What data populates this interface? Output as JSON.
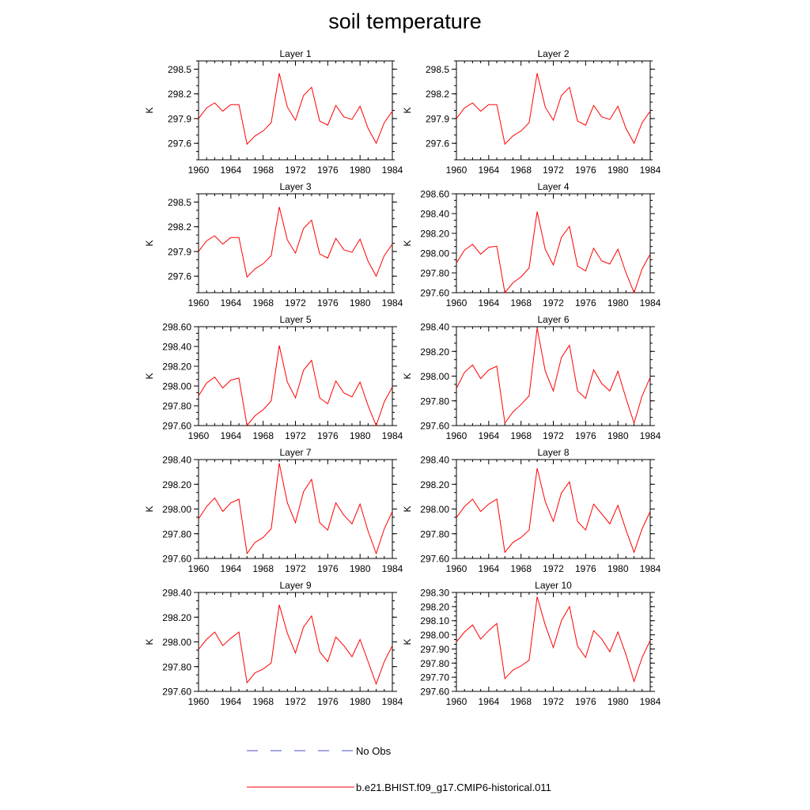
{
  "figure": {
    "title": "soil temperature",
    "line_color": "#ff0000",
    "legend_color_obs": "#4d4dcc"
  },
  "legend": {
    "no_obs_label": "No Obs",
    "model_label": "b.e21.BHIST.f09_g17.CMIP6-historical.011"
  },
  "chart_data": [
    {
      "type": "line",
      "title": "Layer 1",
      "ylabel": "K",
      "xlim": [
        1960,
        1984
      ],
      "ylim": [
        297.4,
        298.6
      ],
      "yticks": [
        297.6,
        297.9,
        298.2,
        298.5
      ],
      "ytick_labels": [
        "297.6",
        "297.9",
        "298.2",
        "298.5"
      ],
      "xticks": [
        1960,
        1964,
        1968,
        1972,
        1976,
        1980,
        1984
      ],
      "xtick_labels": [
        "1960",
        "1964",
        "1968",
        "1972",
        "1976",
        "1980",
        "1984"
      ],
      "series": [
        {
          "x": [
            1960,
            1961,
            1962,
            1963,
            1964,
            1965,
            1966,
            1967,
            1968,
            1969,
            1970,
            1971,
            1972,
            1973,
            1974,
            1975,
            1976,
            1977,
            1978,
            1979,
            1980,
            1981,
            1982,
            1983,
            1984
          ],
          "values": [
            297.9,
            298.03,
            298.09,
            297.99,
            298.07,
            298.07,
            297.59,
            297.69,
            297.75,
            297.85,
            298.45,
            298.04,
            297.88,
            298.18,
            298.28,
            297.87,
            297.82,
            298.06,
            297.92,
            297.89,
            298.05,
            297.78,
            297.6,
            297.85,
            297.99
          ]
        }
      ]
    },
    {
      "type": "line",
      "title": "Layer 2",
      "ylabel": "K",
      "xlim": [
        1960,
        1984
      ],
      "ylim": [
        297.4,
        298.6
      ],
      "yticks": [
        297.6,
        297.9,
        298.2,
        298.5
      ],
      "ytick_labels": [
        "297.6",
        "297.9",
        "298.2",
        "298.5"
      ],
      "xticks": [
        1960,
        1964,
        1968,
        1972,
        1976,
        1980,
        1984
      ],
      "xtick_labels": [
        "1960",
        "1964",
        "1968",
        "1972",
        "1976",
        "1980",
        "1984"
      ],
      "series": [
        {
          "x": [
            1960,
            1961,
            1962,
            1963,
            1964,
            1965,
            1966,
            1967,
            1968,
            1969,
            1970,
            1971,
            1972,
            1973,
            1974,
            1975,
            1976,
            1977,
            1978,
            1979,
            1980,
            1981,
            1982,
            1983,
            1984
          ],
          "values": [
            297.9,
            298.03,
            298.09,
            297.99,
            298.07,
            298.07,
            297.59,
            297.69,
            297.75,
            297.85,
            298.45,
            298.04,
            297.88,
            298.18,
            298.28,
            297.87,
            297.82,
            298.06,
            297.92,
            297.89,
            298.05,
            297.78,
            297.6,
            297.85,
            297.99
          ]
        }
      ]
    },
    {
      "type": "line",
      "title": "Layer 3",
      "ylabel": "K",
      "xlim": [
        1960,
        1984
      ],
      "ylim": [
        297.4,
        298.6
      ],
      "yticks": [
        297.6,
        297.9,
        298.2,
        298.5
      ],
      "ytick_labels": [
        "297.6",
        "297.9",
        "298.2",
        "298.5"
      ],
      "xticks": [
        1960,
        1964,
        1968,
        1972,
        1976,
        1980,
        1984
      ],
      "xtick_labels": [
        "1960",
        "1964",
        "1968",
        "1972",
        "1976",
        "1980",
        "1984"
      ],
      "series": [
        {
          "x": [
            1960,
            1961,
            1962,
            1963,
            1964,
            1965,
            1966,
            1967,
            1968,
            1969,
            1970,
            1971,
            1972,
            1973,
            1974,
            1975,
            1976,
            1977,
            1978,
            1979,
            1980,
            1981,
            1982,
            1983,
            1984
          ],
          "values": [
            297.9,
            298.03,
            298.09,
            297.99,
            298.07,
            298.07,
            297.59,
            297.69,
            297.75,
            297.85,
            298.44,
            298.04,
            297.88,
            298.18,
            298.28,
            297.87,
            297.82,
            298.06,
            297.92,
            297.89,
            298.05,
            297.78,
            297.6,
            297.85,
            297.99
          ]
        }
      ]
    },
    {
      "type": "line",
      "title": "Layer 4",
      "ylabel": "K",
      "xlim": [
        1960,
        1984
      ],
      "ylim": [
        297.6,
        298.6
      ],
      "yticks": [
        297.6,
        297.8,
        298.0,
        298.2,
        298.4,
        298.6
      ],
      "ytick_labels": [
        "297.60",
        "297.80",
        "298.00",
        "298.20",
        "298.40",
        "298.60"
      ],
      "xticks": [
        1960,
        1964,
        1968,
        1972,
        1976,
        1980,
        1984
      ],
      "xtick_labels": [
        "1960",
        "1964",
        "1968",
        "1972",
        "1976",
        "1980",
        "1984"
      ],
      "series": [
        {
          "x": [
            1960,
            1961,
            1962,
            1963,
            1964,
            1965,
            1966,
            1967,
            1968,
            1969,
            1970,
            1971,
            1972,
            1973,
            1974,
            1975,
            1976,
            1977,
            1978,
            1979,
            1980,
            1981,
            1982,
            1983,
            1984
          ],
          "values": [
            297.9,
            298.03,
            298.09,
            297.99,
            298.06,
            298.07,
            297.6,
            297.7,
            297.76,
            297.85,
            298.42,
            298.04,
            297.88,
            298.16,
            298.27,
            297.87,
            297.82,
            298.05,
            297.92,
            297.89,
            298.04,
            297.8,
            297.6,
            297.84,
            297.99
          ]
        }
      ]
    },
    {
      "type": "line",
      "title": "Layer 5",
      "ylabel": "K",
      "xlim": [
        1960,
        1984
      ],
      "ylim": [
        297.6,
        298.6
      ],
      "yticks": [
        297.6,
        297.8,
        298.0,
        298.2,
        298.4,
        298.6
      ],
      "ytick_labels": [
        "297.60",
        "297.80",
        "298.00",
        "298.20",
        "298.40",
        "298.60"
      ],
      "xticks": [
        1960,
        1964,
        1968,
        1972,
        1976,
        1980,
        1984
      ],
      "xtick_labels": [
        "1960",
        "1964",
        "1968",
        "1972",
        "1976",
        "1980",
        "1984"
      ],
      "series": [
        {
          "x": [
            1960,
            1961,
            1962,
            1963,
            1964,
            1965,
            1966,
            1967,
            1968,
            1969,
            1970,
            1971,
            1972,
            1973,
            1974,
            1975,
            1976,
            1977,
            1978,
            1979,
            1980,
            1981,
            1982,
            1983,
            1984
          ],
          "values": [
            297.9,
            298.03,
            298.09,
            297.98,
            298.06,
            298.08,
            297.6,
            297.7,
            297.76,
            297.85,
            298.41,
            298.04,
            297.88,
            298.16,
            298.26,
            297.88,
            297.82,
            298.05,
            297.93,
            297.89,
            298.04,
            297.8,
            297.6,
            297.84,
            297.99
          ]
        }
      ]
    },
    {
      "type": "line",
      "title": "Layer 6",
      "ylabel": "K",
      "xlim": [
        1960,
        1984
      ],
      "ylim": [
        297.6,
        298.4
      ],
      "yticks": [
        297.6,
        297.8,
        298.0,
        298.2,
        298.4
      ],
      "ytick_labels": [
        "297.60",
        "297.80",
        "298.00",
        "298.20",
        "298.40"
      ],
      "xticks": [
        1960,
        1964,
        1968,
        1972,
        1976,
        1980,
        1984
      ],
      "xtick_labels": [
        "1960",
        "1964",
        "1968",
        "1972",
        "1976",
        "1980",
        "1984"
      ],
      "series": [
        {
          "x": [
            1960,
            1961,
            1962,
            1963,
            1964,
            1965,
            1966,
            1967,
            1968,
            1969,
            1970,
            1971,
            1972,
            1973,
            1974,
            1975,
            1976,
            1977,
            1978,
            1979,
            1980,
            1981,
            1982,
            1983,
            1984
          ],
          "values": [
            297.9,
            298.03,
            298.09,
            297.98,
            298.05,
            298.08,
            297.62,
            297.71,
            297.77,
            297.84,
            298.39,
            298.04,
            297.88,
            298.15,
            298.25,
            297.88,
            297.82,
            298.05,
            297.94,
            297.88,
            298.04,
            297.82,
            297.62,
            297.84,
            297.99
          ]
        }
      ]
    },
    {
      "type": "line",
      "title": "Layer 7",
      "ylabel": "K",
      "xlim": [
        1960,
        1984
      ],
      "ylim": [
        297.6,
        298.4
      ],
      "yticks": [
        297.6,
        297.8,
        298.0,
        298.2,
        298.4
      ],
      "ytick_labels": [
        "297.60",
        "297.80",
        "298.00",
        "298.20",
        "298.40"
      ],
      "xticks": [
        1960,
        1964,
        1968,
        1972,
        1976,
        1980,
        1984
      ],
      "xtick_labels": [
        "1960",
        "1964",
        "1968",
        "1972",
        "1976",
        "1980",
        "1984"
      ],
      "series": [
        {
          "x": [
            1960,
            1961,
            1962,
            1963,
            1964,
            1965,
            1966,
            1967,
            1968,
            1969,
            1970,
            1971,
            1972,
            1973,
            1974,
            1975,
            1976,
            1977,
            1978,
            1979,
            1980,
            1981,
            1982,
            1983,
            1984
          ],
          "values": [
            297.92,
            298.02,
            298.09,
            297.98,
            298.05,
            298.08,
            297.64,
            297.73,
            297.77,
            297.84,
            298.37,
            298.05,
            297.89,
            298.14,
            298.24,
            297.89,
            297.83,
            298.05,
            297.95,
            297.88,
            298.04,
            297.82,
            297.64,
            297.84,
            297.98
          ]
        }
      ]
    },
    {
      "type": "line",
      "title": "Layer 8",
      "ylabel": "K",
      "xlim": [
        1960,
        1984
      ],
      "ylim": [
        297.6,
        298.4
      ],
      "yticks": [
        297.6,
        297.8,
        298.0,
        298.2,
        298.4
      ],
      "ytick_labels": [
        "297.60",
        "297.80",
        "298.00",
        "298.20",
        "298.40"
      ],
      "xticks": [
        1960,
        1964,
        1968,
        1972,
        1976,
        1980,
        1984
      ],
      "xtick_labels": [
        "1960",
        "1964",
        "1968",
        "1972",
        "1976",
        "1980",
        "1984"
      ],
      "series": [
        {
          "x": [
            1960,
            1961,
            1962,
            1963,
            1964,
            1965,
            1966,
            1967,
            1968,
            1969,
            1970,
            1971,
            1972,
            1973,
            1974,
            1975,
            1976,
            1977,
            1978,
            1979,
            1980,
            1981,
            1982,
            1983,
            1984
          ],
          "values": [
            297.93,
            298.02,
            298.08,
            297.98,
            298.04,
            298.08,
            297.65,
            297.73,
            297.77,
            297.83,
            298.33,
            298.06,
            297.9,
            298.13,
            298.22,
            297.9,
            297.83,
            298.04,
            297.96,
            297.88,
            298.03,
            297.83,
            297.65,
            297.84,
            297.98
          ]
        }
      ]
    },
    {
      "type": "line",
      "title": "Layer 9",
      "ylabel": "K",
      "xlim": [
        1960,
        1984
      ],
      "ylim": [
        297.6,
        298.4
      ],
      "yticks": [
        297.6,
        297.8,
        298.0,
        298.2,
        298.4
      ],
      "ytick_labels": [
        "297.60",
        "297.80",
        "298.00",
        "298.20",
        "298.40"
      ],
      "xticks": [
        1960,
        1964,
        1968,
        1972,
        1976,
        1980,
        1984
      ],
      "xtick_labels": [
        "1960",
        "1964",
        "1968",
        "1972",
        "1976",
        "1980",
        "1984"
      ],
      "series": [
        {
          "x": [
            1960,
            1961,
            1962,
            1963,
            1964,
            1965,
            1966,
            1967,
            1968,
            1969,
            1970,
            1971,
            1972,
            1973,
            1974,
            1975,
            1976,
            1977,
            1978,
            1979,
            1980,
            1981,
            1982,
            1983,
            1984
          ],
          "values": [
            297.94,
            298.02,
            298.08,
            297.97,
            298.03,
            298.08,
            297.67,
            297.75,
            297.78,
            297.83,
            298.3,
            298.07,
            297.91,
            298.12,
            298.21,
            297.92,
            297.84,
            298.04,
            297.97,
            297.88,
            298.02,
            297.84,
            297.66,
            297.84,
            297.97
          ]
        }
      ]
    },
    {
      "type": "line",
      "title": "Layer 10",
      "ylabel": "K",
      "xlim": [
        1960,
        1984
      ],
      "ylim": [
        297.6,
        298.3
      ],
      "yticks": [
        297.6,
        297.7,
        297.8,
        297.9,
        298.0,
        298.1,
        298.2,
        298.3
      ],
      "ytick_labels": [
        "297.60",
        "297.70",
        "297.80",
        "297.90",
        "298.00",
        "298.10",
        "298.20",
        "298.30"
      ],
      "xticks": [
        1960,
        1964,
        1968,
        1972,
        1976,
        1980,
        1984
      ],
      "xtick_labels": [
        "1960",
        "1964",
        "1968",
        "1972",
        "1976",
        "1980",
        "1984"
      ],
      "series": [
        {
          "x": [
            1960,
            1961,
            1962,
            1963,
            1964,
            1965,
            1966,
            1967,
            1968,
            1969,
            1970,
            1971,
            1972,
            1973,
            1974,
            1975,
            1976,
            1977,
            1978,
            1979,
            1980,
            1981,
            1982,
            1983,
            1984
          ],
          "values": [
            297.95,
            298.02,
            298.07,
            297.97,
            298.03,
            298.08,
            297.69,
            297.75,
            297.78,
            297.82,
            298.27,
            298.07,
            297.91,
            298.1,
            298.2,
            297.92,
            297.84,
            298.03,
            297.97,
            297.88,
            298.02,
            297.86,
            297.67,
            297.84,
            297.96
          ]
        }
      ]
    }
  ]
}
